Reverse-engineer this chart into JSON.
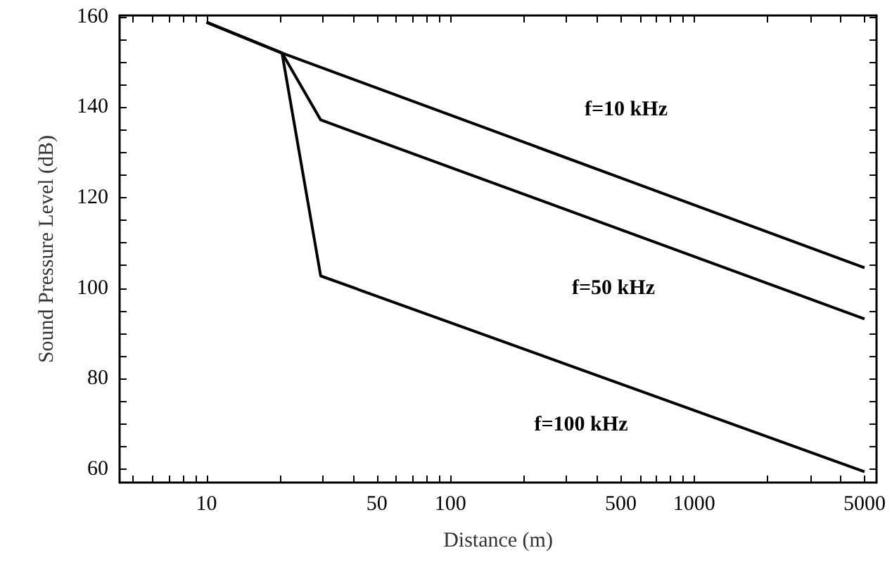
{
  "chart_data": {
    "type": "line",
    "xlabel": "Distance (m)",
    "ylabel": "Sound Pressure Level (dB)",
    "log": "x",
    "xlim": [
      4.4,
      5600
    ],
    "ylim": [
      57,
      160.3
    ],
    "xticks": [
      {
        "value": 5,
        "label": null
      },
      {
        "value": 6,
        "label": null
      },
      {
        "value": 7,
        "label": null
      },
      {
        "value": 8,
        "label": null
      },
      {
        "value": 9,
        "label": null
      },
      10,
      {
        "value": 20,
        "label": null
      },
      {
        "value": 30,
        "label": null
      },
      {
        "value": 40,
        "label": null
      },
      50,
      {
        "value": 60,
        "label": null
      },
      {
        "value": 70,
        "label": null
      },
      {
        "value": 80,
        "label": null
      },
      {
        "value": 90,
        "label": null
      },
      100,
      {
        "value": 200,
        "label": null
      },
      {
        "value": 300,
        "label": null
      },
      {
        "value": 400,
        "label": null
      },
      500,
      {
        "value": 600,
        "label": null
      },
      {
        "value": 700,
        "label": null
      },
      {
        "value": 800,
        "label": null
      },
      {
        "value": 900,
        "label": null
      },
      1000,
      {
        "value": 2000,
        "label": null
      },
      {
        "value": 3000,
        "label": null
      },
      {
        "value": 4000,
        "label": null
      },
      5000
    ],
    "yticks": [
      60,
      {
        "value": 65,
        "label": null
      },
      {
        "value": 70,
        "label": null
      },
      {
        "value": 75,
        "label": null
      },
      80,
      {
        "value": 85,
        "label": null
      },
      {
        "value": 90,
        "label": null
      },
      {
        "value": 95,
        "label": null
      },
      100,
      {
        "value": 105,
        "label": null
      },
      {
        "value": 110,
        "label": null
      },
      {
        "value": 115,
        "label": null
      },
      120,
      {
        "value": 125,
        "label": null
      },
      {
        "value": 130,
        "label": null
      },
      {
        "value": 135,
        "label": null
      },
      140,
      {
        "value": 145,
        "label": null
      },
      {
        "value": 150,
        "label": null
      },
      {
        "value": 155,
        "label": null
      },
      160
    ],
    "grid": false,
    "marker": "none",
    "line_style": "solid",
    "series": [
      {
        "name": "f=10 kHz",
        "color": "#000000",
        "x": [
          10,
          20.4,
          5000
        ],
        "values": [
          158.8,
          152,
          104.5
        ]
      },
      {
        "name": "f=50 kHz",
        "color": "#000000",
        "x": [
          10,
          20.4,
          29.4,
          5000
        ],
        "values": [
          158.8,
          152,
          137.2,
          93.2
        ]
      },
      {
        "name": "f=100 kHz",
        "color": "#000000",
        "x": [
          10,
          20.4,
          29.4,
          5000
        ],
        "values": [
          158.8,
          152,
          102.7,
          59.4
        ]
      }
    ]
  }
}
